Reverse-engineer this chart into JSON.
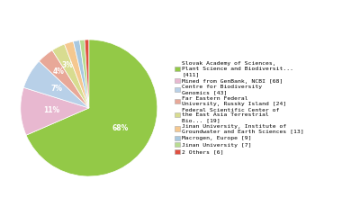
{
  "labels": [
    "Slovak Academy of Sciences,\nPlant Science and Biodiversit...\n[411]",
    "Mined from GenBank, NCBI [68]",
    "Centre for Biodiversity\nGenomics [43]",
    "Far Eastern Federal\nUniversity, Russky Island [24]",
    "Federal Scientific Center of\nthe East Asia Terrestrial\nBio... [19]",
    "Jinan University, Institute of\nGroundwater and Earth Sciences [13]",
    "Macrogen, Europe [9]",
    "Jinan University [7]",
    "2 Others [6]"
  ],
  "values": [
    411,
    68,
    43,
    24,
    19,
    13,
    9,
    7,
    6
  ],
  "colors": [
    "#93c947",
    "#e8b8d0",
    "#b8d0e8",
    "#e8a898",
    "#d8dc90",
    "#f5c890",
    "#a8c8e0",
    "#b8dc90",
    "#e05040"
  ],
  "figsize": [
    3.8,
    2.4
  ],
  "dpi": 100
}
